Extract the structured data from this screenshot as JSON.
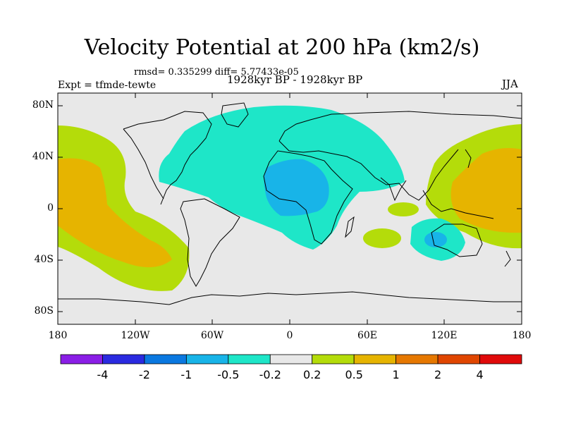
{
  "title": "Velocity Potential at 200 hPa (km2/s)",
  "stats": "rmsd= 0.335299 diff= 5.77433e-05",
  "experiment": "Expt = tfmde-tewte",
  "period": "1928kyr BP - 1928kyr BP",
  "season": "JJA",
  "y_axis_labels": [
    "80N",
    "40N",
    "0",
    "40S",
    "80S"
  ],
  "x_axis_labels": [
    "180",
    "120W",
    "60W",
    "0",
    "60E",
    "120E",
    "180"
  ],
  "colorbar": {
    "colors": [
      "#8a1ee6",
      "#2a2ae0",
      "#0a78e0",
      "#18b4e8",
      "#1ee6c8",
      "#e8e8e8",
      "#b4dc0a",
      "#e6b400",
      "#e67800",
      "#e04600",
      "#e00a0a"
    ],
    "labels": [
      "-4",
      "-2",
      "-1",
      "-0.5",
      "-0.2",
      "0.2",
      "0.5",
      "1",
      "2",
      "4"
    ]
  },
  "legend_colors": {
    "background": "#e8e8e8",
    "negative_weak": "#1ee6c8",
    "negative_moderate": "#18b4e8",
    "positive_weak": "#b4dc0a",
    "positive_moderate": "#e6b400"
  }
}
